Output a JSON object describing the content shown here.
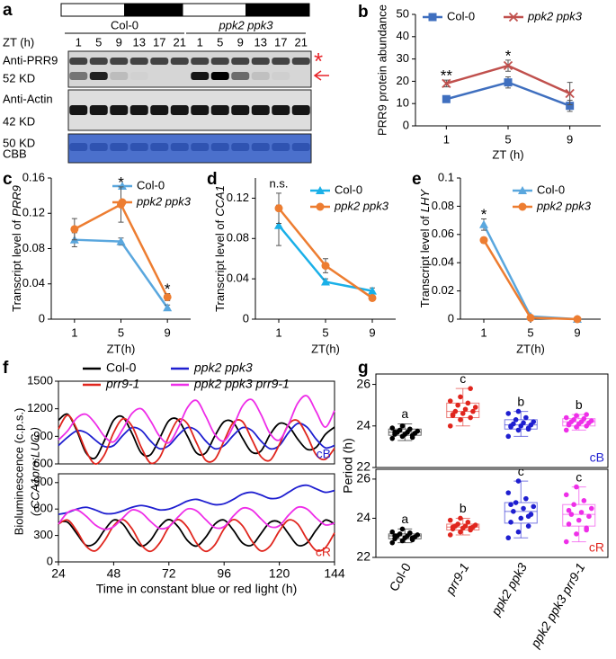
{
  "blot": {
    "panel_label": "a",
    "genotypes": [
      "Col-0",
      "ppk2 ppk3"
    ],
    "italic": [
      false,
      true
    ],
    "zt_label": "ZT (h)",
    "zt": [
      1,
      5,
      9,
      13,
      17,
      21,
      1,
      5,
      9,
      13,
      17,
      21
    ],
    "rows": [
      [
        "Anti-PRR9",
        "52 KD"
      ],
      [
        "Anti-Actin",
        "42 KD"
      ],
      [
        "50 KD",
        "CBB"
      ]
    ],
    "marker": "*"
  },
  "chart_data": [
    {
      "type": "line",
      "panel_label": "b",
      "ylabel": "PRR9 protein abundance",
      "xlabel": "ZT (h)",
      "categories": [
        "1",
        "5",
        "9"
      ],
      "ylim": [
        0,
        50
      ],
      "yticks": [
        0,
        10,
        20,
        30,
        40,
        50
      ],
      "series": [
        {
          "name": "Col-0",
          "color": "#3f6fbf",
          "marker": "square",
          "italic": false,
          "values": [
            12,
            19.5,
            9
          ],
          "errors": [
            1.5,
            2.5,
            2.5
          ]
        },
        {
          "name": "ppk2 ppk3",
          "color": "#c0504d",
          "marker": "x",
          "italic": true,
          "values": [
            19,
            27,
            14.5
          ],
          "errors": [
            1.5,
            2.5,
            5
          ]
        }
      ],
      "annotations": [
        {
          "text": "**",
          "category": 0
        },
        {
          "text": "*",
          "category": 1
        }
      ]
    },
    {
      "type": "line",
      "panel_label": "c",
      "ylabel": {
        "text": "Transcript level of",
        "gene": "PRR9"
      },
      "xlabel": "ZT(h)",
      "categories": [
        "1",
        "5",
        "9"
      ],
      "ylim": [
        0,
        0.16
      ],
      "yticks": [
        0,
        0.04,
        0.08,
        0.12,
        0.16
      ],
      "series": [
        {
          "name": "Col-0",
          "color": "#5aa7de",
          "marker": "triangle",
          "italic": false,
          "values": [
            0.09,
            0.088,
            0.013
          ],
          "errors": [
            0.008,
            0.004,
            0.003
          ]
        },
        {
          "name": "ppk2 ppk3",
          "color": "#ed7d31",
          "marker": "circle",
          "italic": true,
          "values": [
            0.102,
            0.13,
            0.025
          ],
          "errors": [
            0.012,
            0.02,
            0.004
          ]
        }
      ],
      "annotations": [
        {
          "text": "*",
          "category": 1
        },
        {
          "text": "*",
          "category": 2
        }
      ]
    },
    {
      "type": "line",
      "panel_label": "d",
      "ylabel": {
        "text": "Transcript level of",
        "gene": "CCA1"
      },
      "xlabel": "ZT(h)",
      "categories": [
        "1",
        "5",
        "9"
      ],
      "ylim": [
        0,
        0.14
      ],
      "yticks": [
        0,
        0.04,
        0.08,
        0.12
      ],
      "series": [
        {
          "name": "Col-0",
          "color": "#1ab0e8",
          "marker": "triangle",
          "italic": false,
          "values": [
            0.093,
            0.037,
            0.028
          ],
          "errors": [
            0.02,
            0.003,
            0.003
          ]
        },
        {
          "name": "ppk2 ppk3",
          "color": "#ed7d31",
          "marker": "circle",
          "italic": true,
          "values": [
            0.11,
            0.053,
            0.021
          ],
          "errors": [
            0.015,
            0.007,
            0.002
          ]
        }
      ],
      "annotations": [
        {
          "text": "n.s.",
          "category": 0
        }
      ]
    },
    {
      "type": "line",
      "panel_label": "e",
      "ylabel": {
        "text": "Transcript level of",
        "gene": "LHY"
      },
      "xlabel": "ZT(h)",
      "categories": [
        "1",
        "5",
        "9"
      ],
      "ylim": [
        0,
        0.1
      ],
      "yticks": [
        0,
        0.02,
        0.04,
        0.06,
        0.08,
        0.1
      ],
      "series": [
        {
          "name": "Col-0",
          "color": "#5aa7de",
          "marker": "triangle",
          "italic": false,
          "values": [
            0.067,
            0.002,
            0
          ],
          "errors": [
            0.004,
            0.0005,
            0
          ]
        },
        {
          "name": "ppk2 ppk3",
          "color": "#ed7d31",
          "marker": "circle",
          "italic": true,
          "values": [
            0.056,
            0.001,
            0
          ],
          "errors": [
            0.002,
            0.0005,
            0
          ]
        }
      ],
      "annotations": [
        {
          "text": "*",
          "category": 0
        }
      ]
    },
    {
      "type": "timecourse",
      "panel_label": "f",
      "ylabel": "Bioluminescence (c.p.s.)",
      "ylabel2": "( CCA1pro:LUC )",
      "xlabel": "Time in constant blue or red light (h)",
      "x": [
        24,
        28,
        32,
        36,
        40,
        44,
        48,
        52,
        56,
        60,
        64,
        68,
        72,
        76,
        80,
        84,
        88,
        92,
        96,
        100,
        104,
        108,
        112,
        116,
        120,
        124,
        128,
        132,
        136,
        140,
        144
      ],
      "xlim": [
        24,
        144
      ],
      "xticks": [
        24,
        48,
        72,
        96,
        120,
        144
      ],
      "series": [
        {
          "name": "Col-0",
          "color": "#000000",
          "italic": false
        },
        {
          "name": "ppk2 ppk3",
          "color": "#1f1fd0",
          "italic": true
        },
        {
          "name": "prr9-1",
          "color": "#e0261e",
          "italic": true
        },
        {
          "name": "ppk2 ppk3 prr9-1",
          "color": "#ee2ee8",
          "italic": true
        }
      ],
      "panels": [
        {
          "label": "cB",
          "label_color": "#1f1fd0",
          "ylim": [
            600,
            1500
          ],
          "yticks": [
            600,
            900,
            1200,
            1500
          ],
          "values": [
            [
              1075,
              1140,
              960,
              720,
              665,
              855,
              1075,
              1110,
              930,
              720,
              700,
              880,
              1070,
              1080,
              905,
              720,
              720,
              905,
              1060,
              1050,
              880,
              730,
              740,
              920,
              1040,
              1010,
              870,
              760,
              780,
              920,
              1000
            ],
            [
              800,
              890,
              960,
              940,
              860,
              790,
              800,
              910,
              995,
              965,
              850,
              765,
              800,
              910,
              995,
              965,
              850,
              765,
              800,
              910,
              995,
              965,
              850,
              765,
              800,
              940,
              1040,
              1000,
              870,
              775,
              800
            ],
            [
              980,
              1130,
              980,
              740,
              600,
              700,
              940,
              1090,
              1010,
              780,
              610,
              670,
              900,
              1080,
              1040,
              830,
              640,
              650,
              850,
              1050,
              1060,
              870,
              680,
              640,
              810,
              1030,
              1070,
              910,
              700,
              650,
              770
            ],
            [
              860,
              960,
              1100,
              1140,
              1040,
              900,
              840,
              980,
              1150,
              1200,
              1070,
              900,
              830,
              990,
              1210,
              1290,
              1120,
              920,
              850,
              1010,
              1230,
              1300,
              1140,
              930,
              860,
              1030,
              1260,
              1340,
              1170,
              1000,
              1180
            ]
          ]
        },
        {
          "label": "cR",
          "label_color": "#e0261e",
          "ylim": [
            0,
            1000
          ],
          "yticks": [
            0,
            300,
            600,
            900
          ],
          "values": [
            [
              450,
              450,
              320,
              190,
              215,
              360,
              475,
              430,
              280,
              180,
              245,
              400,
              480,
              400,
              245,
              180,
              280,
              430,
              475,
              360,
              215,
              190,
              320,
              450,
              450,
              320,
              190,
              215,
              360,
              475,
              430
            ],
            [
              540,
              560,
              600,
              620,
              590,
              550,
              550,
              580,
              620,
              640,
              620,
              590,
              600,
              640,
              690,
              710,
              680,
              650,
              660,
              710,
              770,
              790,
              760,
              720,
              730,
              790,
              850,
              870,
              830,
              790,
              810
            ],
            [
              430,
              475,
              350,
              180,
              125,
              240,
              410,
              480,
              375,
              195,
              120,
              215,
              395,
              480,
              395,
              215,
              120,
              195,
              375,
              480,
              410,
              240,
              125,
              180,
              350,
              475,
              430,
              260,
              130,
              160,
              330
            ],
            [
              430,
              560,
              590,
              520,
              420,
              370,
              400,
              500,
              590,
              560,
              460,
              380,
              400,
              510,
              600,
              580,
              480,
              390,
              400,
              520,
              610,
              590,
              490,
              400,
              410,
              530,
              620,
              600,
              500,
              420,
              440
            ]
          ]
        }
      ]
    },
    {
      "type": "box",
      "panel_label": "g",
      "ylabel": "Period (h)",
      "categories": [
        "Col-0",
        "prr9-1",
        "ppk2 ppk3",
        "ppk2 ppk3 prr9-1"
      ],
      "italic": [
        false,
        true,
        true,
        true
      ],
      "colors": [
        "#000000",
        "#e0261e",
        "#1f1fd0",
        "#ee2ee8"
      ],
      "panels": [
        {
          "label": "cB",
          "label_color": "#1f1fd0",
          "ylim": [
            22,
            26.5
          ],
          "yticks": [
            22,
            24,
            26
          ],
          "groups": [
            {
              "letter": "a",
              "min": 23.3,
              "q1": 23.55,
              "median": 23.7,
              "q3": 23.85,
              "max": 24.1,
              "points": [
                23.4,
                23.5,
                23.55,
                23.6,
                23.6,
                23.65,
                23.7,
                23.7,
                23.75,
                23.8,
                23.85,
                23.9,
                24.0,
                23.45,
                23.7
              ]
            },
            {
              "letter": "c",
              "min": 24.0,
              "q1": 24.4,
              "median": 24.7,
              "q3": 25.1,
              "max": 25.8,
              "points": [
                24.0,
                24.3,
                24.4,
                24.5,
                24.6,
                24.7,
                24.7,
                24.8,
                24.9,
                25.0,
                25.1,
                25.2,
                25.4,
                25.8,
                24.55
              ]
            },
            {
              "letter": "b",
              "min": 23.5,
              "q1": 23.85,
              "median": 24.05,
              "q3": 24.3,
              "max": 24.7,
              "points": [
                23.5,
                23.8,
                23.9,
                23.95,
                24.0,
                24.05,
                24.1,
                24.15,
                24.2,
                24.3,
                24.4,
                24.6,
                24.7,
                23.85,
                24.0
              ]
            },
            {
              "letter": "b",
              "min": 23.8,
              "q1": 24.0,
              "median": 24.2,
              "q3": 24.35,
              "max": 24.55,
              "points": [
                23.8,
                23.95,
                24.0,
                24.05,
                24.1,
                24.15,
                24.2,
                24.2,
                24.25,
                24.3,
                24.35,
                24.4,
                24.5,
                24.55,
                24.1
              ]
            }
          ]
        },
        {
          "label": "cR",
          "label_color": "#e0261e",
          "ylim": [
            22,
            26.5
          ],
          "yticks": [
            22,
            24,
            26
          ],
          "groups": [
            {
              "letter": "a",
              "min": 22.75,
              "q1": 22.95,
              "median": 23.1,
              "q3": 23.2,
              "max": 23.45,
              "points": [
                22.75,
                22.85,
                22.9,
                22.95,
                23.0,
                23.05,
                23.1,
                23.1,
                23.15,
                23.2,
                23.25,
                23.3,
                23.45,
                23.0,
                23.1
              ]
            },
            {
              "letter": "b",
              "min": 23.15,
              "q1": 23.4,
              "median": 23.55,
              "q3": 23.7,
              "max": 24.0,
              "points": [
                23.15,
                23.3,
                23.4,
                23.45,
                23.5,
                23.55,
                23.6,
                23.6,
                23.65,
                23.7,
                23.8,
                23.9,
                24.0,
                23.5,
                23.55
              ]
            },
            {
              "letter": "c",
              "min": 23.0,
              "q1": 23.75,
              "median": 24.35,
              "q3": 24.8,
              "max": 25.9,
              "points": [
                23.0,
                23.3,
                23.6,
                23.8,
                24.0,
                24.2,
                24.35,
                24.5,
                24.6,
                24.8,
                25.0,
                25.3,
                25.9,
                24.1,
                24.7
              ]
            },
            {
              "letter": "c",
              "min": 22.8,
              "q1": 23.6,
              "median": 24.2,
              "q3": 24.7,
              "max": 25.6,
              "points": [
                22.8,
                23.2,
                23.5,
                23.7,
                23.9,
                24.1,
                24.2,
                24.3,
                24.5,
                24.7,
                24.9,
                25.2,
                25.6,
                23.4,
                24.4
              ]
            }
          ]
        }
      ]
    }
  ]
}
